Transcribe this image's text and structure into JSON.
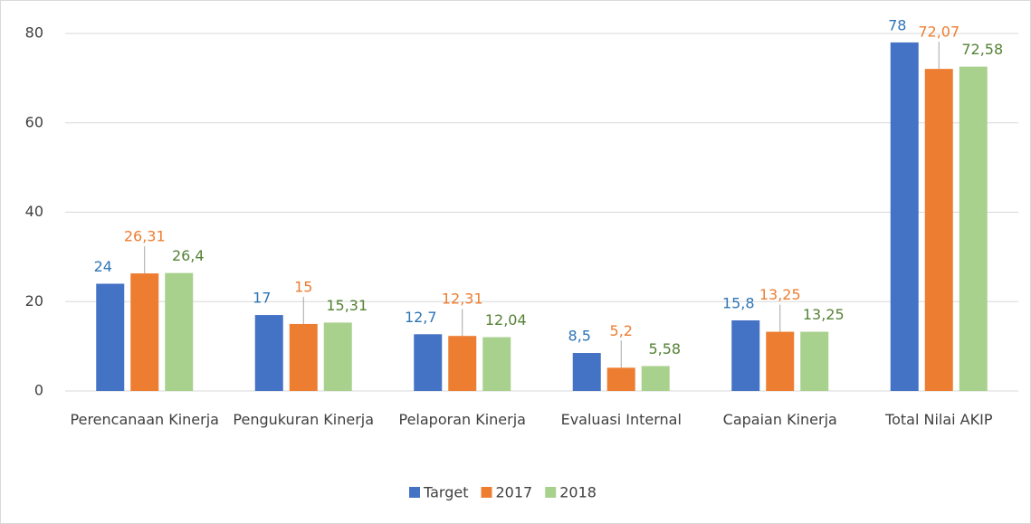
{
  "chart_data": {
    "type": "bar",
    "categories": [
      "Perencanaan Kinerja",
      "Pengukuran Kinerja",
      "Pelaporan Kinerja",
      "Evaluasi Internal",
      "Capaian Kinerja",
      "Total Nilai AKIP"
    ],
    "series": [
      {
        "name": "Target",
        "color": "#4472c4",
        "label_color": "#2e75b6",
        "values": [
          24,
          17,
          12.7,
          8.5,
          15.8,
          78
        ],
        "value_labels": [
          "24",
          "17",
          "12,7",
          "8,5",
          "15,8",
          "78"
        ]
      },
      {
        "name": "2017",
        "color": "#ed7d31",
        "label_color": "#ed7d31",
        "values": [
          26.31,
          15,
          12.31,
          5.2,
          13.25,
          72.07
        ],
        "value_labels": [
          "26,31",
          "15",
          "12,31",
          "5,2",
          "13,25",
          "72,07"
        ]
      },
      {
        "name": "2018",
        "color": "#a9d18e",
        "label_color": "#548235",
        "values": [
          26.4,
          15.31,
          12.04,
          5.58,
          13.25,
          72.58
        ],
        "value_labels": [
          "26,4",
          "15,31",
          "12,04",
          "5,58",
          "13,25",
          "72,58"
        ]
      }
    ],
    "ylim": [
      0,
      80
    ],
    "yticks": [
      0,
      20,
      40,
      60,
      80
    ],
    "grid": true,
    "legend": "bottom"
  }
}
